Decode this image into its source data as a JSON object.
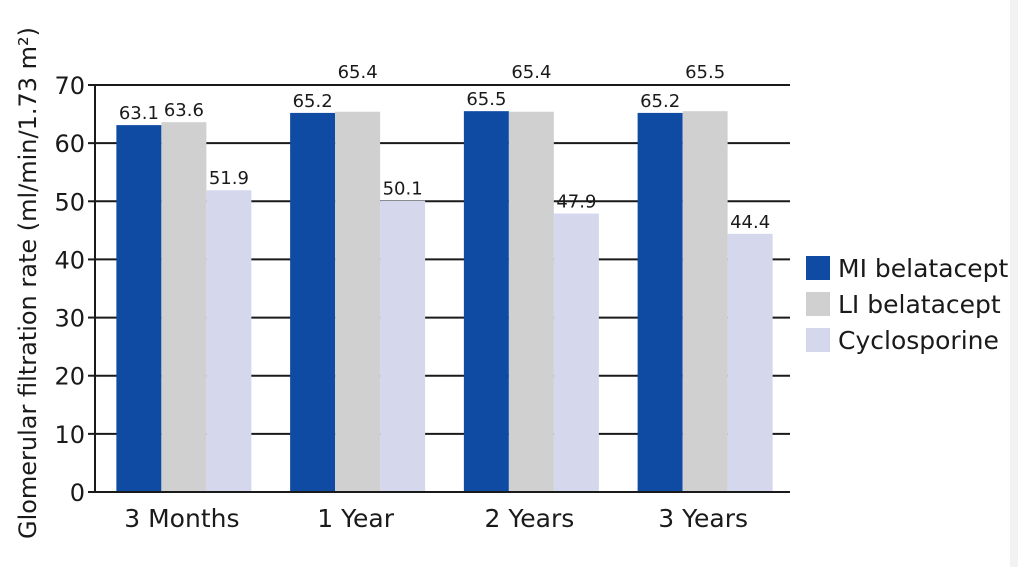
{
  "chart_data": {
    "type": "bar",
    "categories": [
      "3 Months",
      "1 Year",
      "2 Years",
      "3 Years"
    ],
    "series": [
      {
        "name": "MI belatacept",
        "values": [
          63.1,
          65.2,
          65.5,
          65.2
        ],
        "color": "#0f4aa3"
      },
      {
        "name": "LI belatacept",
        "values": [
          63.6,
          65.4,
          65.4,
          65.5
        ],
        "color": "#d0d0d0"
      },
      {
        "name": "Cyclosporine",
        "values": [
          51.9,
          50.1,
          47.9,
          44.4
        ],
        "color": "#d5d8ec"
      }
    ],
    "data_labels": [
      [
        "63.1",
        "65.2",
        "65.5",
        "65.2"
      ],
      [
        "63.6",
        "65.4",
        "65.4",
        "65.5"
      ],
      [
        "51.9",
        "50.1",
        "47.9",
        "44.4"
      ]
    ],
    "title": "",
    "xlabel": "",
    "ylabel": "Glomerular filtration rate  (ml/min/1.73 m²)",
    "ylim": [
      0,
      70
    ],
    "yticks": [
      "0",
      "10",
      "20",
      "30",
      "40",
      "50",
      "60",
      "70"
    ],
    "grid": true,
    "legend_position": "right"
  }
}
